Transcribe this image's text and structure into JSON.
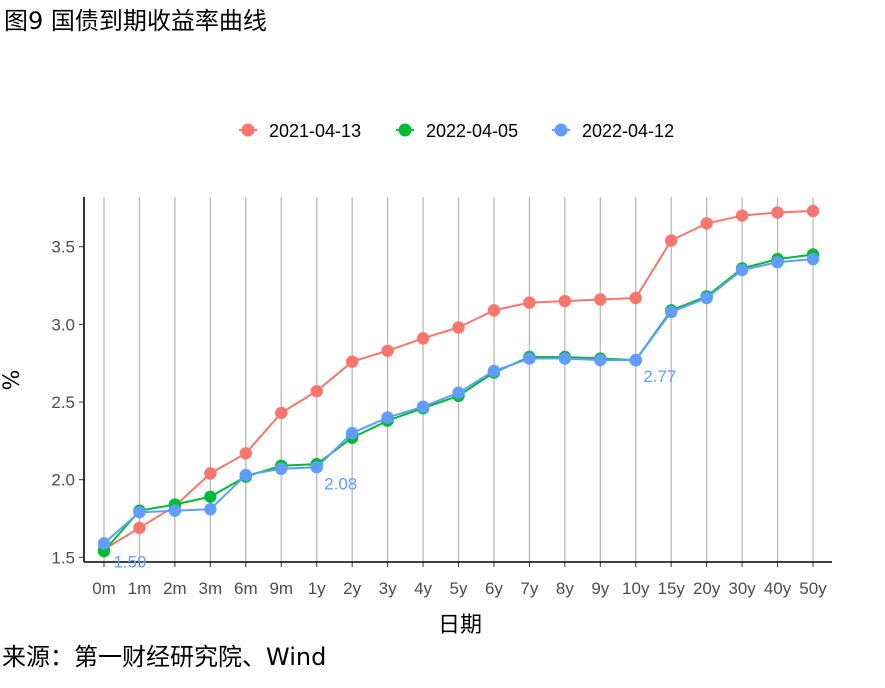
{
  "figure": {
    "title": "图9 国债到期收益率曲线",
    "source": "来源：第一财经研究院、Wind"
  },
  "chart_data": {
    "type": "line",
    "xlabel": "日期",
    "ylabel": "%",
    "categories": [
      "0m",
      "1m",
      "2m",
      "3m",
      "6m",
      "9m",
      "1y",
      "2y",
      "3y",
      "4y",
      "5y",
      "6y",
      "7y",
      "8y",
      "9y",
      "10y",
      "15y",
      "20y",
      "30y",
      "40y",
      "50y"
    ],
    "ylim": [
      1.47,
      3.82
    ],
    "yticks": [
      1.5,
      2.0,
      2.5,
      3.0,
      3.5
    ],
    "ytick_labels": [
      "1.5",
      "2.0",
      "2.5",
      "3.0",
      "3.5"
    ],
    "grid": "vertical",
    "legend_position": "top",
    "series": [
      {
        "name": "2021-04-13",
        "color": "#F8766D",
        "values": [
          1.55,
          1.69,
          1.83,
          2.04,
          2.17,
          2.43,
          2.57,
          2.76,
          2.83,
          2.91,
          2.98,
          3.09,
          3.14,
          3.15,
          3.16,
          3.17,
          3.54,
          3.65,
          3.7,
          3.72,
          3.73
        ]
      },
      {
        "name": "2022-04-05",
        "color": "#00BA38",
        "values": [
          1.54,
          1.8,
          1.84,
          1.89,
          2.02,
          2.09,
          2.1,
          2.27,
          2.38,
          2.46,
          2.54,
          2.69,
          2.79,
          2.79,
          2.78,
          2.77,
          3.09,
          3.18,
          3.36,
          3.42,
          3.45
        ]
      },
      {
        "name": "2022-04-12",
        "color": "#619CFF",
        "values": [
          1.59,
          1.79,
          1.8,
          1.81,
          2.03,
          2.07,
          2.08,
          2.3,
          2.4,
          2.47,
          2.56,
          2.7,
          2.78,
          2.78,
          2.77,
          2.77,
          3.08,
          3.17,
          3.35,
          3.4,
          3.42
        ]
      }
    ],
    "annotations": [
      {
        "text": "1.59",
        "category": "0m",
        "value": 1.59,
        "color": "#619CFF"
      },
      {
        "text": "2.08",
        "category": "1y",
        "value": 2.08,
        "color": "#619CFF"
      },
      {
        "text": "2.77",
        "category": "10y",
        "value": 2.77,
        "color": "#619CFF"
      }
    ]
  }
}
